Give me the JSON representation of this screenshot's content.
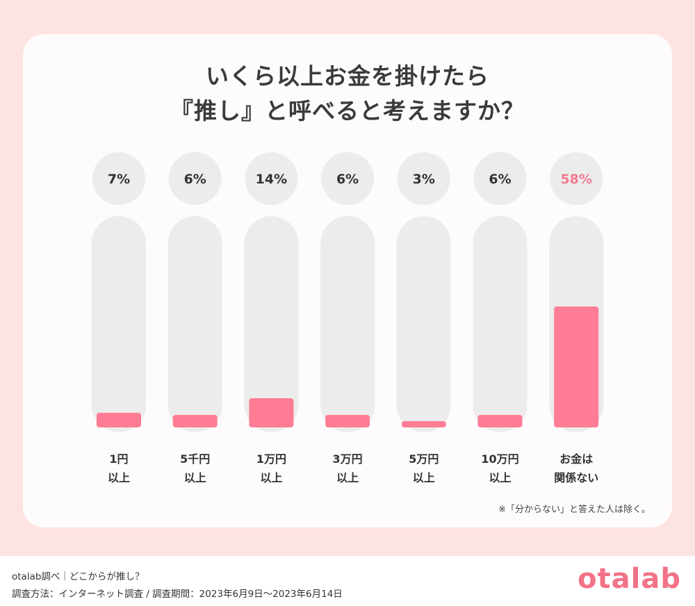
{
  "title": {
    "line1": "いくら以上お金を掛けたら",
    "line2": "『推し』と呼べると考えますか？"
  },
  "colors": {
    "background": "#fde3e1",
    "card": "#fdfbfb",
    "track": "#ececec",
    "bar": "#ff7c95",
    "highlight_text": "#f37a91"
  },
  "chart_data": {
    "type": "bar",
    "title": "いくら以上お金を掛けたら『推し』と呼べると考えますか？",
    "categories": [
      [
        "1円",
        "以上"
      ],
      [
        "5千円",
        "以上"
      ],
      [
        "1万円",
        "以上"
      ],
      [
        "3万円",
        "以上"
      ],
      [
        "5万円",
        "以上"
      ],
      [
        "10万円",
        "以上"
      ],
      [
        "お金は",
        "関係ない"
      ]
    ],
    "values": [
      7,
      6,
      14,
      6,
      3,
      6,
      58
    ],
    "value_labels": [
      "7%",
      "6%",
      "14%",
      "6%",
      "3%",
      "6%",
      "58%"
    ],
    "highlight_index": 6,
    "unit": "%",
    "ylim": [
      0,
      100
    ],
    "grid": false
  },
  "note": "※「分からない」と答えた人は除く。",
  "footer": {
    "source": "otalab調べ｜どこからが推し？",
    "method": "調査方法：インターネット調査 / 調査期間：2023年6月9日〜2023年6月14日",
    "logo": "otalab"
  }
}
